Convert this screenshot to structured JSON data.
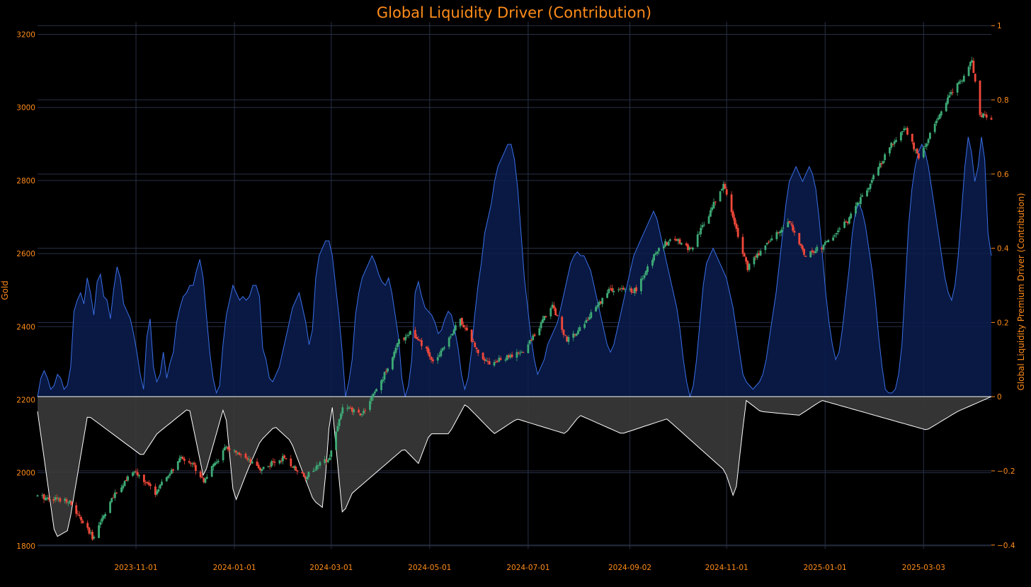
{
  "chart_data": {
    "type": "candlestick+area",
    "title": "Global Liquidity Driver (Contribution)",
    "ylabel_left": "Gold",
    "ylabel_right": "Global Liquidity Premium Driver (Contribution)",
    "x_range": [
      "2023-09-01",
      "2025-04-14"
    ],
    "y_left_range": [
      1792,
      3234
    ],
    "y_right_range": [
      -0.41,
      1.01
    ],
    "x_ticks": [
      "2023-11-01",
      "2024-01-01",
      "2024-03-01",
      "2024-05-01",
      "2024-07-01",
      "2024-09-02",
      "2024-11-01",
      "2025-01-01",
      "2025-03-03"
    ],
    "y_left_ticks": [
      1800,
      2000,
      2200,
      2400,
      2600,
      2800,
      3000,
      3200
    ],
    "y_right_ticks": [
      {
        "value": -0.4,
        "label": "−0.4"
      },
      {
        "value": -0.2,
        "label": "−0.2"
      },
      {
        "value": 0,
        "label": "0"
      },
      {
        "value": 0.2,
        "label": "0.2"
      },
      {
        "value": 0.4,
        "label": "0.4"
      },
      {
        "value": 0.6,
        "label": "0.6"
      },
      {
        "value": 0.8,
        "label": "0.8"
      },
      {
        "value": 1,
        "label": "1"
      }
    ],
    "grid": true,
    "gold_close_anchors": [
      [
        "2023-09-01",
        1935
      ],
      [
        "2023-09-20",
        1925
      ],
      [
        "2023-10-05",
        1822
      ],
      [
        "2023-10-16",
        1920
      ],
      [
        "2023-10-27",
        1990
      ],
      [
        "2023-11-01",
        2000
      ],
      [
        "2023-11-13",
        1945
      ],
      [
        "2023-11-29",
        2040
      ],
      [
        "2023-12-05",
        2030
      ],
      [
        "2023-12-13",
        1980
      ],
      [
        "2023-12-27",
        2070
      ],
      [
        "2024-01-17",
        2010
      ],
      [
        "2024-01-31",
        2040
      ],
      [
        "2024-02-14",
        1990
      ],
      [
        "2024-02-29",
        2045
      ],
      [
        "2024-03-08",
        2180
      ],
      [
        "2024-03-20",
        2160
      ],
      [
        "2024-04-01",
        2250
      ],
      [
        "2024-04-12",
        2360
      ],
      [
        "2024-04-19",
        2385
      ],
      [
        "2024-04-29",
        2335
      ],
      [
        "2024-05-03",
        2300
      ],
      [
        "2024-05-20",
        2420
      ],
      [
        "2024-05-31",
        2330
      ],
      [
        "2024-06-07",
        2300
      ],
      [
        "2024-06-28",
        2330
      ],
      [
        "2024-07-16",
        2460
      ],
      [
        "2024-07-25",
        2360
      ],
      [
        "2024-08-05",
        2410
      ],
      [
        "2024-08-20",
        2500
      ],
      [
        "2024-09-06",
        2500
      ],
      [
        "2024-09-20",
        2620
      ],
      [
        "2024-09-30",
        2640
      ],
      [
        "2024-10-10",
        2610
      ],
      [
        "2024-10-30",
        2790
      ],
      [
        "2024-11-14",
        2560
      ],
      [
        "2024-11-25",
        2625
      ],
      [
        "2024-12-10",
        2690
      ],
      [
        "2024-12-19",
        2595
      ],
      [
        "2024-12-31",
        2620
      ],
      [
        "2025-01-15",
        2690
      ],
      [
        "2025-01-30",
        2800
      ],
      [
        "2025-02-11",
        2900
      ],
      [
        "2025-02-20",
        2940
      ],
      [
        "2025-02-28",
        2860
      ],
      [
        "2025-03-03",
        2890
      ],
      [
        "2025-03-20",
        3040
      ],
      [
        "2025-03-28",
        3080
      ],
      [
        "2025-04-02",
        3130
      ],
      [
        "2025-04-07",
        2980
      ],
      [
        "2025-04-14",
        2970
      ]
    ],
    "liquidity_driver_series": [
      0,
      0.05,
      0.07,
      0.05,
      0.02,
      0.03,
      0.06,
      0.05,
      0.02,
      0.03,
      0.08,
      0.23,
      0.26,
      0.28,
      0.25,
      0.32,
      0.28,
      0.22,
      0.31,
      0.33,
      0.27,
      0.26,
      0.21,
      0.29,
      0.35,
      0.32,
      0.25,
      0.23,
      0.21,
      0.17,
      0.12,
      0.06,
      0.02,
      0.16,
      0.21,
      0.08,
      0.04,
      0.06,
      0.12,
      0.05,
      0.09,
      0.12,
      0.2,
      0.24,
      0.27,
      0.28,
      0.3,
      0.3,
      0.34,
      0.37,
      0.32,
      0.22,
      0.12,
      0.05,
      0.01,
      0.03,
      0.14,
      0.22,
      0.26,
      0.3,
      0.28,
      0.26,
      0.27,
      0.26,
      0.27,
      0.3,
      0.3,
      0.27,
      0.13,
      0.1,
      0.05,
      0.04,
      0.06,
      0.08,
      0.12,
      0.16,
      0.2,
      0.24,
      0.26,
      0.28,
      0.24,
      0.2,
      0.14,
      0.18,
      0.32,
      0.38,
      0.4,
      0.42,
      0.42,
      0.38,
      0.3,
      0.22,
      0.12,
      0.0,
      0.04,
      0.1,
      0.22,
      0.28,
      0.32,
      0.34,
      0.36,
      0.38,
      0.36,
      0.33,
      0.31,
      0.3,
      0.32,
      0.28,
      0.22,
      0.16,
      0.05,
      0.0,
      0.03,
      0.1,
      0.28,
      0.31,
      0.27,
      0.24,
      0.23,
      0.22,
      0.2,
      0.17,
      0.18,
      0.21,
      0.23,
      0.22,
      0.18,
      0.13,
      0.06,
      0.02,
      0.05,
      0.12,
      0.22,
      0.3,
      0.36,
      0.44,
      0.48,
      0.52,
      0.58,
      0.62,
      0.64,
      0.66,
      0.68,
      0.68,
      0.64,
      0.56,
      0.44,
      0.32,
      0.24,
      0.16,
      0.1,
      0.06,
      0.08,
      0.1,
      0.14,
      0.16,
      0.18,
      0.2,
      0.24,
      0.28,
      0.32,
      0.36,
      0.38,
      0.39,
      0.38,
      0.38,
      0.36,
      0.34,
      0.3,
      0.26,
      0.22,
      0.18,
      0.14,
      0.12,
      0.14,
      0.18,
      0.22,
      0.26,
      0.3,
      0.34,
      0.38,
      0.4,
      0.42,
      0.44,
      0.46,
      0.48,
      0.5,
      0.48,
      0.44,
      0.4,
      0.36,
      0.32,
      0.28,
      0.24,
      0.18,
      0.1,
      0.04,
      0.0,
      0.03,
      0.1,
      0.2,
      0.3,
      0.36,
      0.38,
      0.4,
      0.38,
      0.36,
      0.34,
      0.32,
      0.28,
      0.24,
      0.18,
      0.12,
      0.06,
      0.04,
      0.03,
      0.02,
      0.03,
      0.04,
      0.06,
      0.1,
      0.16,
      0.22,
      0.28,
      0.36,
      0.44,
      0.52,
      0.58,
      0.6,
      0.62,
      0.6,
      0.58,
      0.6,
      0.62,
      0.6,
      0.56,
      0.48,
      0.38,
      0.28,
      0.2,
      0.14,
      0.1,
      0.12,
      0.18,
      0.26,
      0.34,
      0.44,
      0.5,
      0.52,
      0.5,
      0.46,
      0.4,
      0.34,
      0.26,
      0.16,
      0.08,
      0.02,
      0.01,
      0.01,
      0.02,
      0.06,
      0.14,
      0.3,
      0.46,
      0.56,
      0.62,
      0.66,
      0.68,
      0.66,
      0.62,
      0.56,
      0.5,
      0.44,
      0.38,
      0.32,
      0.28,
      0.26,
      0.3,
      0.38,
      0.5,
      0.62,
      0.7,
      0.66,
      0.58,
      0.62,
      0.7,
      0.64,
      0.44,
      0.38
    ],
    "liquidity_driver_min_anchors": [
      [
        "2023-09-01",
        -0.04
      ],
      [
        "2023-09-12",
        -0.38
      ],
      [
        "2023-09-20",
        -0.36
      ],
      [
        "2023-10-02",
        -0.05
      ],
      [
        "2023-11-05",
        -0.16
      ],
      [
        "2023-11-14",
        -0.1
      ],
      [
        "2023-12-04",
        -0.03
      ],
      [
        "2023-12-13",
        -0.22
      ],
      [
        "2023-12-26",
        -0.02
      ],
      [
        "2024-01-01",
        -0.29
      ],
      [
        "2024-01-09",
        -0.2
      ],
      [
        "2024-01-17",
        -0.12
      ],
      [
        "2024-01-26",
        -0.08
      ],
      [
        "2024-02-05",
        -0.12
      ],
      [
        "2024-02-19",
        -0.28
      ],
      [
        "2024-02-25",
        -0.3
      ],
      [
        "2024-03-01",
        -0.0
      ],
      [
        "2024-03-08",
        -0.32
      ],
      [
        "2024-03-14",
        -0.26
      ],
      [
        "2024-04-15",
        -0.14
      ],
      [
        "2024-04-24",
        -0.18
      ],
      [
        "2024-05-01",
        -0.1
      ],
      [
        "2024-05-13",
        -0.1
      ],
      [
        "2024-05-23",
        -0.02
      ],
      [
        "2024-06-10",
        -0.1
      ],
      [
        "2024-06-24",
        -0.06
      ],
      [
        "2024-07-24",
        -0.1
      ],
      [
        "2024-08-02",
        -0.05
      ],
      [
        "2024-08-28",
        -0.1
      ],
      [
        "2024-09-25",
        -0.06
      ],
      [
        "2024-10-31",
        -0.2
      ],
      [
        "2024-11-06",
        -0.28
      ],
      [
        "2024-11-13",
        -0.01
      ],
      [
        "2024-11-22",
        -0.04
      ],
      [
        "2024-12-16",
        -0.05
      ],
      [
        "2024-12-30",
        -0.01
      ],
      [
        "2025-03-05",
        -0.09
      ],
      [
        "2025-03-24",
        -0.04
      ],
      [
        "2025-04-14",
        0
      ]
    ]
  }
}
